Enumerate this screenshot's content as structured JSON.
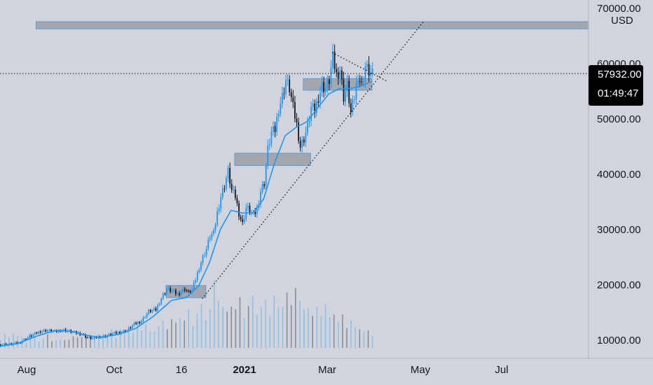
{
  "chart_data": {
    "type": "candlestick",
    "title": "",
    "currency": "USD",
    "y_axis": {
      "range": [
        7000,
        71000
      ],
      "ticks": [
        "10000.00",
        "20000.00",
        "30000.00",
        "40000.00",
        "50000.00",
        "60000.00",
        "70000.00"
      ]
    },
    "x_axis": {
      "ticks": [
        {
          "label": "Aug",
          "bold": false
        },
        {
          "label": "Oct",
          "bold": false
        },
        {
          "label": "16",
          "bold": false
        },
        {
          "label": "2021",
          "bold": true
        },
        {
          "label": "Mar",
          "bold": false
        },
        {
          "label": "May",
          "bold": false
        },
        {
          "label": "Jul",
          "bold": false
        }
      ]
    },
    "last_price": "57932.00",
    "countdown": "01:49:47",
    "colors": {
      "background": "#d1d4dc",
      "up_candle": "#2196f3",
      "down_candle": "#131722",
      "moving_average": "#2196f3",
      "zone_fill": "#a5a7ae",
      "zone_border": "#5b9bd5",
      "price_box": "#000000"
    },
    "price_path": [
      [
        0,
        9200
      ],
      [
        6,
        9300
      ],
      [
        10,
        9500
      ],
      [
        14,
        10300
      ],
      [
        18,
        11000
      ],
      [
        22,
        11600
      ],
      [
        26,
        11800
      ],
      [
        30,
        11500
      ],
      [
        34,
        11900
      ],
      [
        38,
        11600
      ],
      [
        42,
        11300
      ],
      [
        45,
        11100
      ],
      [
        48,
        10500
      ],
      [
        51,
        10300
      ],
      [
        54,
        10600
      ],
      [
        58,
        10700
      ],
      [
        62,
        11200
      ],
      [
        66,
        11400
      ],
      [
        70,
        11800
      ],
      [
        74,
        12900
      ],
      [
        78,
        13500
      ],
      [
        82,
        15200
      ],
      [
        86,
        15500
      ],
      [
        88,
        16900
      ],
      [
        90,
        18200
      ],
      [
        92,
        19200
      ],
      [
        94,
        19000
      ],
      [
        96,
        18700
      ],
      [
        98,
        18300
      ],
      [
        100,
        18800
      ],
      [
        102,
        19300
      ],
      [
        104,
        18600
      ],
      [
        106,
        19000
      ],
      [
        108,
        21000
      ],
      [
        110,
        23200
      ],
      [
        112,
        25000
      ],
      [
        114,
        26500
      ],
      [
        116,
        28900
      ],
      [
        118,
        29300
      ],
      [
        120,
        33000
      ],
      [
        122,
        36000
      ],
      [
        124,
        38000
      ],
      [
        126,
        40500
      ],
      [
        128,
        37000
      ],
      [
        130,
        36000
      ],
      [
        132,
        33000
      ],
      [
        134,
        31000
      ],
      [
        136,
        34000
      ],
      [
        138,
        33500
      ],
      [
        140,
        32500
      ],
      [
        142,
        33600
      ],
      [
        144,
        37000
      ],
      [
        146,
        38500
      ],
      [
        148,
        44500
      ],
      [
        150,
        47500
      ],
      [
        152,
        48000
      ],
      [
        154,
        52000
      ],
      [
        156,
        54000
      ],
      [
        158,
        57000
      ],
      [
        160,
        55500
      ],
      [
        162,
        52000
      ],
      [
        164,
        49000
      ],
      [
        166,
        45000
      ],
      [
        168,
        46500
      ],
      [
        170,
        48500
      ],
      [
        172,
        52000
      ],
      [
        174,
        51500
      ],
      [
        176,
        54000
      ],
      [
        178,
        56000
      ],
      [
        180,
        55500
      ],
      [
        182,
        57000
      ],
      [
        184,
        61000
      ],
      [
        186,
        58000
      ],
      [
        188,
        59000
      ],
      [
        190,
        54000
      ],
      [
        192,
        56000
      ],
      [
        194,
        51000
      ],
      [
        196,
        54000
      ],
      [
        198,
        58000
      ],
      [
        200,
        56000
      ],
      [
        202,
        59500
      ],
      [
        204,
        58500
      ],
      [
        206,
        57932
      ]
    ],
    "moving_average": [
      [
        0,
        8900
      ],
      [
        10,
        9400
      ],
      [
        20,
        10700
      ],
      [
        30,
        11700
      ],
      [
        40,
        11600
      ],
      [
        45,
        11100
      ],
      [
        55,
        10500
      ],
      [
        65,
        11000
      ],
      [
        75,
        12100
      ],
      [
        85,
        14300
      ],
      [
        95,
        17200
      ],
      [
        103,
        17700
      ],
      [
        110,
        19800
      ],
      [
        116,
        24000
      ],
      [
        122,
        30000
      ],
      [
        128,
        33500
      ],
      [
        134,
        33000
      ],
      [
        140,
        33000
      ],
      [
        146,
        35500
      ],
      [
        152,
        42000
      ],
      [
        158,
        47000
      ],
      [
        164,
        48500
      ],
      [
        170,
        49500
      ],
      [
        176,
        52000
      ],
      [
        182,
        54500
      ],
      [
        188,
        55500
      ],
      [
        194,
        55500
      ],
      [
        200,
        56000
      ],
      [
        206,
        56800
      ]
    ],
    "volume": [
      0.12,
      0.18,
      0.1,
      0.22,
      0.15,
      0.1,
      0.08,
      0.2,
      0.12,
      0.09,
      0.11,
      0.14,
      0.1,
      0.08,
      0.06,
      0.12,
      0.09,
      0.11,
      0.16,
      0.13,
      0.1,
      0.18,
      0.12,
      0.14,
      0.2,
      0.17,
      0.22,
      0.15,
      0.25,
      0.19,
      0.28,
      0.21,
      0.3,
      0.26,
      0.33,
      0.18,
      0.24,
      0.3,
      0.35,
      0.28,
      0.4,
      0.32,
      0.45,
      0.38,
      0.52,
      0.33,
      0.48,
      0.6,
      0.42,
      0.55,
      0.95,
      0.7,
      0.58,
      0.48,
      0.62,
      0.55,
      0.7,
      0.45,
      0.6,
      0.72,
      0.5,
      0.58,
      0.66,
      0.48,
      0.75,
      0.55,
      0.62,
      0.8,
      0.58,
      0.9,
      0.68,
      0.52,
      0.6,
      0.45,
      0.55,
      0.48,
      0.62,
      0.4,
      0.5,
      0.36,
      0.44,
      0.3,
      0.38,
      0.25,
      0.28,
      0.22,
      0.2,
      0.18
    ],
    "zones": [
      {
        "name": "top-resistance",
        "x0": 20,
        "x1": 326,
        "y_low": 66300,
        "y_high": 67600
      },
      {
        "name": "ath-range-zone",
        "x0": 168,
        "x1": 206,
        "y_low": 55200,
        "y_high": 57300
      },
      {
        "name": "breakout-zone",
        "x0": 130,
        "x1": 172,
        "y_low": 41600,
        "y_high": 43800
      },
      {
        "name": "dec-range-zone",
        "x0": 92,
        "x1": 114,
        "y_low": 17700,
        "y_high": 19900
      }
    ],
    "trendlines": [
      {
        "name": "rising-support",
        "from": [
          112,
          17500
        ],
        "to": [
          235,
          67800
        ]
      },
      {
        "name": "falling-resistance",
        "from": [
          184,
          62000
        ],
        "to": [
          214,
          56900
        ]
      }
    ],
    "x_domain": [
      0,
      326
    ]
  }
}
